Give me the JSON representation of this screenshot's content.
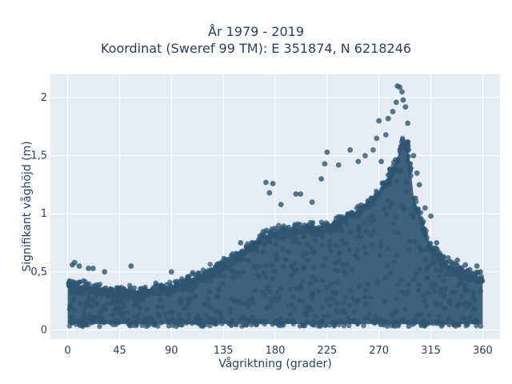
{
  "chart_data": {
    "type": "scatter",
    "title_line1": "År 1979 - 2019",
    "title_line2": "Koordinat (Sweref 99 TM): E 351874, N 6218246",
    "xlabel": "Vågriktning (grader)",
    "ylabel": "Signifikant våghöjd (m)",
    "xlim": [
      -15,
      375
    ],
    "ylim": [
      -0.08,
      2.2
    ],
    "xticks": [
      0,
      45,
      90,
      135,
      180,
      225,
      270,
      315,
      360
    ],
    "xtick_labels": [
      "0",
      "45",
      "90",
      "135",
      "180",
      "225",
      "270",
      "315",
      "360"
    ],
    "yticks": [
      0,
      0.5,
      1,
      1.5,
      2
    ],
    "ytick_labels": [
      "0",
      "0,5",
      "1",
      "1,5",
      "2"
    ],
    "grid": true,
    "marker_color": "#2f5670",
    "envelope": {
      "x": [
        0,
        15,
        30,
        45,
        60,
        75,
        90,
        105,
        120,
        135,
        150,
        165,
        180,
        195,
        210,
        225,
        240,
        255,
        270,
        280,
        285,
        290,
        295,
        300,
        315,
        330,
        345,
        360
      ],
      "upper": [
        0.4,
        0.38,
        0.36,
        0.34,
        0.34,
        0.36,
        0.38,
        0.43,
        0.5,
        0.58,
        0.66,
        0.78,
        0.85,
        0.87,
        0.88,
        0.9,
        0.97,
        1.05,
        1.2,
        1.35,
        1.45,
        1.62,
        1.62,
        1.15,
        0.72,
        0.56,
        0.5,
        0.45
      ],
      "lower": 0.05
    },
    "outliers": [
      {
        "x": 4,
        "y": 0.56
      },
      {
        "x": 6,
        "y": 0.58
      },
      {
        "x": 10,
        "y": 0.55
      },
      {
        "x": 18,
        "y": 0.53
      },
      {
        "x": 22,
        "y": 0.53
      },
      {
        "x": 32,
        "y": 0.5
      },
      {
        "x": 55,
        "y": 0.55
      },
      {
        "x": 90,
        "y": 0.5
      },
      {
        "x": 150,
        "y": 0.75
      },
      {
        "x": 155,
        "y": 0.72
      },
      {
        "x": 172,
        "y": 1.27
      },
      {
        "x": 175,
        "y": 1.18
      },
      {
        "x": 178,
        "y": 1.26
      },
      {
        "x": 185,
        "y": 1.08
      },
      {
        "x": 198,
        "y": 1.17
      },
      {
        "x": 202,
        "y": 1.17
      },
      {
        "x": 212,
        "y": 1.1
      },
      {
        "x": 220,
        "y": 1.3
      },
      {
        "x": 223,
        "y": 1.43
      },
      {
        "x": 225,
        "y": 1.53
      },
      {
        "x": 235,
        "y": 1.42
      },
      {
        "x": 245,
        "y": 1.55
      },
      {
        "x": 252,
        "y": 1.45
      },
      {
        "x": 258,
        "y": 1.5
      },
      {
        "x": 265,
        "y": 1.55
      },
      {
        "x": 268,
        "y": 1.65
      },
      {
        "x": 270,
        "y": 1.8
      },
      {
        "x": 272,
        "y": 1.45
      },
      {
        "x": 276,
        "y": 1.68
      },
      {
        "x": 278,
        "y": 1.82
      },
      {
        "x": 282,
        "y": 1.88
      },
      {
        "x": 285,
        "y": 1.96
      },
      {
        "x": 286,
        "y": 2.1
      },
      {
        "x": 288,
        "y": 2.09
      },
      {
        "x": 290,
        "y": 2.05
      },
      {
        "x": 291,
        "y": 1.98
      },
      {
        "x": 293,
        "y": 1.92
      },
      {
        "x": 295,
        "y": 1.78
      },
      {
        "x": 300,
        "y": 1.5
      },
      {
        "x": 303,
        "y": 1.35
      },
      {
        "x": 305,
        "y": 1.25
      },
      {
        "x": 310,
        "y": 1.05
      },
      {
        "x": 315,
        "y": 0.98
      },
      {
        "x": 320,
        "y": 0.75
      },
      {
        "x": 325,
        "y": 0.63
      },
      {
        "x": 330,
        "y": 0.62
      },
      {
        "x": 338,
        "y": 0.6
      },
      {
        "x": 345,
        "y": 0.56
      },
      {
        "x": 355,
        "y": 0.55
      },
      {
        "x": 358,
        "y": 0.5
      }
    ]
  }
}
